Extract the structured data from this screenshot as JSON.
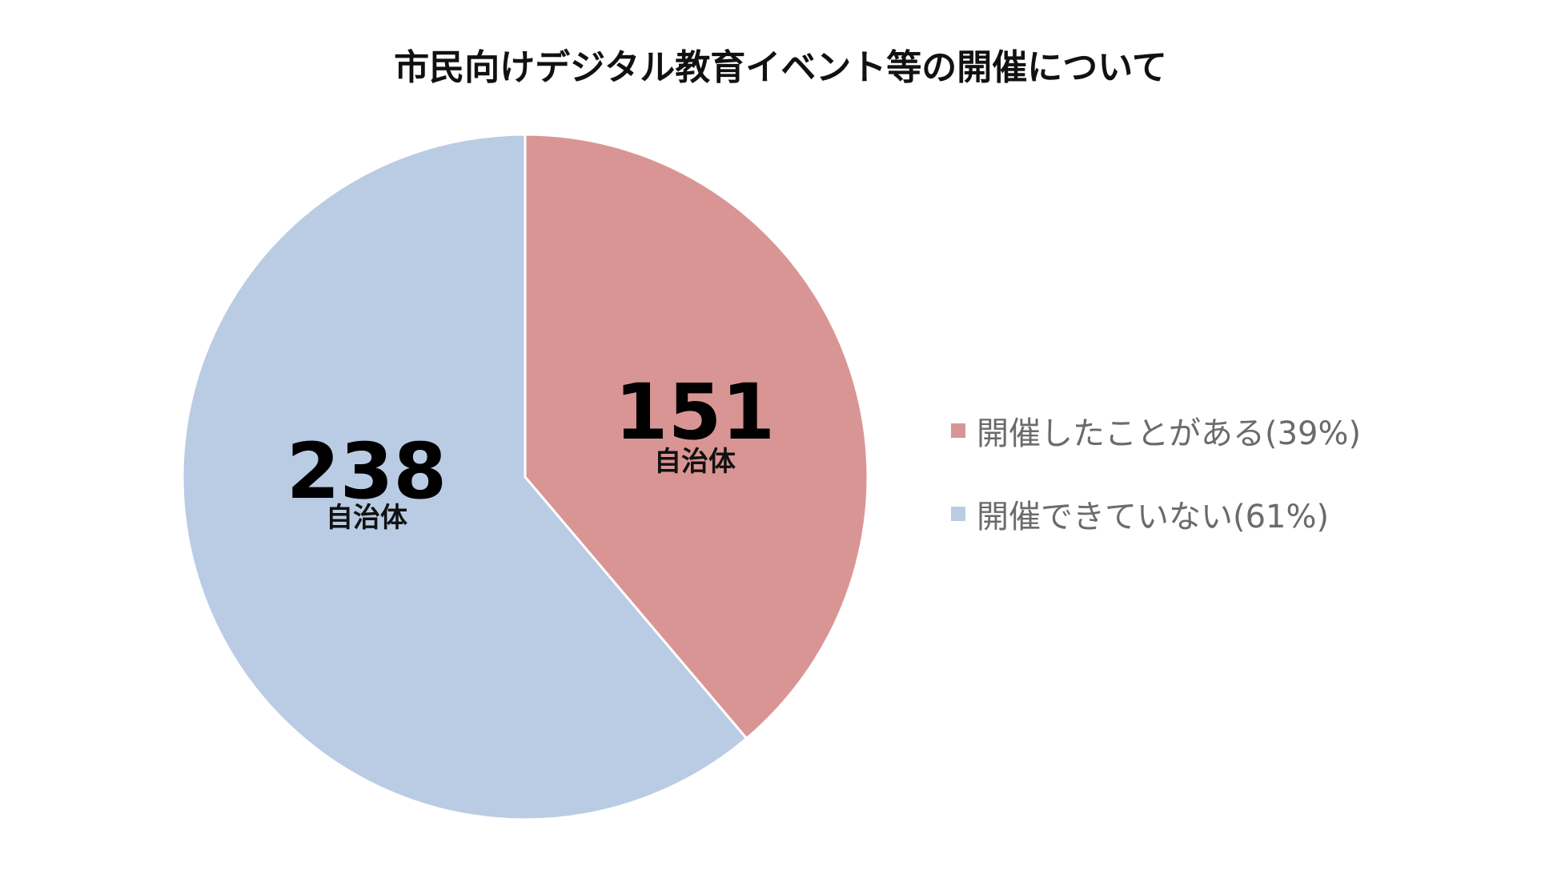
{
  "chart_data": {
    "type": "pie",
    "title": "市民向けデジタル教育イベント等の開催について",
    "slices": [
      {
        "label": "開催したことがある(39%)",
        "value": 151,
        "percent": 39,
        "unit": "自治体",
        "color": "#d99594"
      },
      {
        "label": "開催できていない(61%)",
        "value": 238,
        "percent": 61,
        "unit": "自治体",
        "color": "#b9cce4"
      }
    ],
    "start_direction": "top",
    "legend_position": "right"
  }
}
